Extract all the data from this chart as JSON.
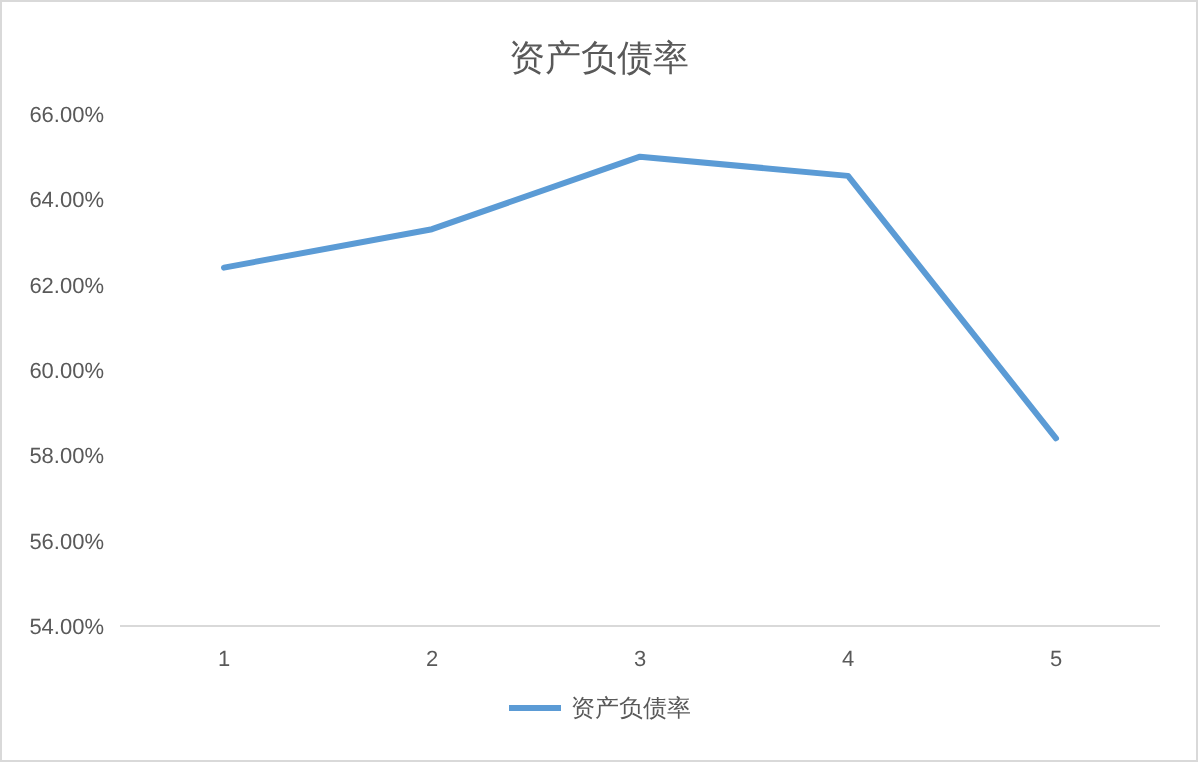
{
  "chart_data": {
    "type": "line",
    "title": "资产负债率",
    "categories": [
      "1",
      "2",
      "3",
      "4",
      "5"
    ],
    "series": [
      {
        "name": "资产负债率",
        "color": "#5b9bd5",
        "values": [
          62.4,
          63.3,
          65.0,
          64.55,
          58.4
        ]
      }
    ],
    "ylim": [
      54,
      66
    ],
    "yticks": [
      {
        "value": 54,
        "label": "54.00%"
      },
      {
        "value": 56,
        "label": "56.00%"
      },
      {
        "value": 58,
        "label": "58.00%"
      },
      {
        "value": 60,
        "label": "60.00%"
      },
      {
        "value": 62,
        "label": "62.00%"
      },
      {
        "value": 64,
        "label": "64.00%"
      },
      {
        "value": 66,
        "label": "66.00%"
      }
    ],
    "legend": "bottom",
    "marker": "none",
    "line_style": "solid",
    "grid": false
  }
}
